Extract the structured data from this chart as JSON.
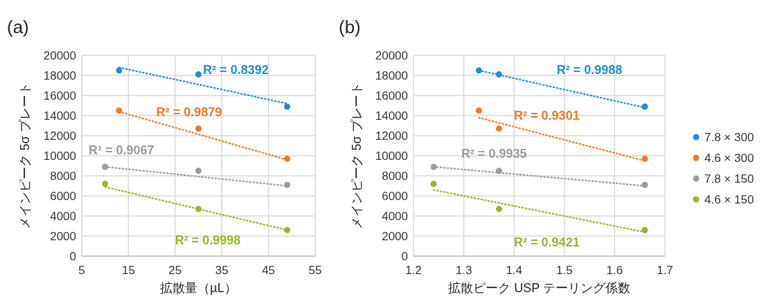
{
  "chart_data": [
    {
      "type": "scatter",
      "title": "(a)",
      "xlabel": "拡散量（µL）",
      "ylabel": "メインピーク 5σ プレート",
      "xlim": [
        5,
        55
      ],
      "xticks": [
        5,
        15,
        25,
        35,
        45,
        55
      ],
      "ylim": [
        0,
        20000
      ],
      "yticks": [
        0,
        2000,
        4000,
        6000,
        8000,
        10000,
        12000,
        14000,
        16000,
        18000,
        20000
      ],
      "grid": true,
      "marker": "circle",
      "series": [
        {
          "color": "#1f8fce",
          "x": [
            13,
            30,
            49
          ],
          "values": [
            18500,
            18100,
            14900
          ]
        },
        {
          "color": "#f07a2a",
          "x": [
            13,
            30,
            49
          ],
          "values": [
            14500,
            12700,
            9700
          ]
        },
        {
          "color": "#9b9b9e",
          "x": [
            10,
            30,
            49
          ],
          "values": [
            8900,
            8500,
            7100
          ]
        },
        {
          "color": "#93b82a",
          "x": [
            10,
            30,
            49
          ],
          "values": [
            7200,
            4700,
            2600
          ]
        },
        {
          "type": "line",
          "line_style": "dotted",
          "marker": "none",
          "color": "#1f8fce",
          "x": [
            13,
            49
          ],
          "values": [
            18800,
            15200
          ]
        },
        {
          "type": "line",
          "line_style": "dotted",
          "marker": "none",
          "color": "#f07a2a",
          "x": [
            13,
            49
          ],
          "values": [
            14400,
            9600
          ]
        },
        {
          "type": "line",
          "line_style": "dotted",
          "marker": "none",
          "color": "#9b9b9e",
          "x": [
            10,
            49
          ],
          "values": [
            8900,
            7000
          ]
        },
        {
          "type": "line",
          "line_style": "dotted",
          "marker": "none",
          "color": "#93b82a",
          "x": [
            10,
            49
          ],
          "values": [
            6900,
            2600
          ]
        }
      ],
      "annotations": [
        "R² = 0.8392",
        "R² = 0.9879",
        "R² = 0.9067",
        "R² = 0.9998"
      ]
    },
    {
      "type": "scatter",
      "title": "(b)",
      "xlabel": "拡散ピーク USP テーリング係数",
      "ylabel": "メインピーク 5σ プレート",
      "xlim": [
        1.2,
        1.7
      ],
      "xticks": [
        1.2,
        1.3,
        1.4,
        1.5,
        1.6,
        1.7
      ],
      "ylim": [
        0,
        20000
      ],
      "yticks": [
        0,
        2000,
        4000,
        6000,
        8000,
        10000,
        12000,
        14000,
        16000,
        18000,
        20000
      ],
      "grid": true,
      "legend": "right",
      "marker": "circle",
      "series": [
        {
          "name": "7.8 × 300",
          "color": "#1f8fce",
          "x": [
            1.33,
            1.37,
            1.66
          ],
          "values": [
            18500,
            18100,
            14900
          ]
        },
        {
          "name": "4.6 × 300",
          "color": "#f07a2a",
          "x": [
            1.33,
            1.37,
            1.66
          ],
          "values": [
            14500,
            12700,
            9700
          ]
        },
        {
          "name": "7.8 × 150",
          "color": "#9b9b9e",
          "x": [
            1.24,
            1.37,
            1.66
          ],
          "values": [
            8900,
            8500,
            7100
          ]
        },
        {
          "name": "4.6 × 150",
          "color": "#93b82a",
          "x": [
            1.24,
            1.37,
            1.66
          ],
          "values": [
            7200,
            4700,
            2600
          ]
        },
        {
          "type": "line",
          "line_style": "dotted",
          "marker": "none",
          "color": "#1f8fce",
          "x": [
            1.33,
            1.66
          ],
          "values": [
            18500,
            14800
          ]
        },
        {
          "type": "line",
          "line_style": "dotted",
          "marker": "none",
          "color": "#f07a2a",
          "x": [
            1.33,
            1.66
          ],
          "values": [
            13800,
            9500
          ]
        },
        {
          "type": "line",
          "line_style": "dotted",
          "marker": "none",
          "color": "#9b9b9e",
          "x": [
            1.24,
            1.66
          ],
          "values": [
            8900,
            7000
          ]
        },
        {
          "type": "line",
          "line_style": "dotted",
          "marker": "none",
          "color": "#93b82a",
          "x": [
            1.24,
            1.66
          ],
          "values": [
            6600,
            2400
          ]
        }
      ],
      "annotations": [
        "R² = 0.9988",
        "R² = 0.9301",
        "R² = 0.9935",
        "R² = 0.9421"
      ]
    }
  ]
}
